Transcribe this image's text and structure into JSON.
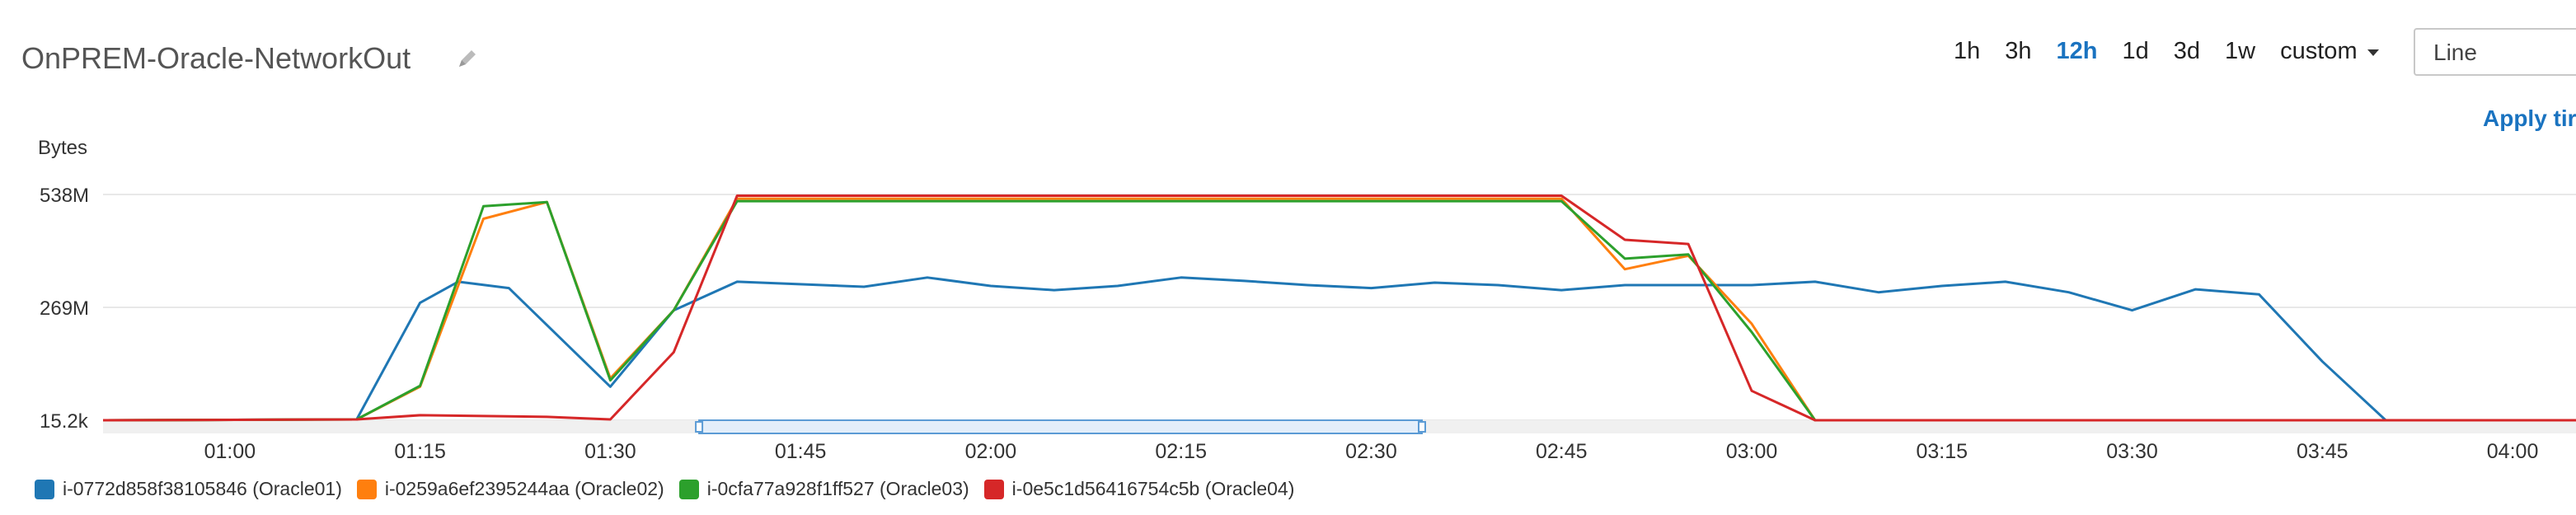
{
  "header": {
    "title": "OnPREM-Oracle-NetworkOut",
    "edit_icon": "pencil-icon"
  },
  "time_range": {
    "options": [
      "1h",
      "3h",
      "12h",
      "1d",
      "3d",
      "1w"
    ],
    "active": "12h",
    "custom_label": "custom"
  },
  "chart_type_select": {
    "value": "Line"
  },
  "apply_label": "Apply tir",
  "colors": {
    "series": [
      "#1f77b4",
      "#ff7f0e",
      "#2ca02c",
      "#d62728"
    ],
    "grid": "#e8e8e8",
    "navigator": "#5b9bd5"
  },
  "chart_data": {
    "type": "line",
    "ylabel": "Bytes",
    "y_ticks": [
      "15.2k",
      "269M",
      "538M"
    ],
    "ylim": [
      0,
      538
    ],
    "y_unit": "M",
    "x_ticks": [
      "01:00",
      "01:15",
      "01:30",
      "01:45",
      "02:00",
      "02:15",
      "02:30",
      "02:45",
      "03:00",
      "03:15",
      "03:30",
      "03:45",
      "04:00"
    ],
    "x_range": [
      "00:50",
      "04:05"
    ],
    "grid": true,
    "legend_position": "bottom-left",
    "series": [
      {
        "name": "i-0772d858f38105846 (Oracle01)",
        "points": [
          [
            "00:50",
            0
          ],
          [
            "01:00",
            1
          ],
          [
            "01:10",
            2
          ],
          [
            "01:15",
            280
          ],
          [
            "01:18",
            330
          ],
          [
            "01:22",
            315
          ],
          [
            "01:30",
            80
          ],
          [
            "01:35",
            262
          ],
          [
            "01:40",
            330
          ],
          [
            "01:50",
            318
          ],
          [
            "01:55",
            340
          ],
          [
            "02:00",
            320
          ],
          [
            "02:05",
            310
          ],
          [
            "02:10",
            320
          ],
          [
            "02:15",
            340
          ],
          [
            "02:20",
            332
          ],
          [
            "02:25",
            322
          ],
          [
            "02:30",
            315
          ],
          [
            "02:35",
            328
          ],
          [
            "02:40",
            322
          ],
          [
            "02:45",
            310
          ],
          [
            "02:50",
            322
          ],
          [
            "02:55",
            322
          ],
          [
            "03:00",
            322
          ],
          [
            "03:05",
            330
          ],
          [
            "03:10",
            305
          ],
          [
            "03:15",
            320
          ],
          [
            "03:20",
            330
          ],
          [
            "03:25",
            305
          ],
          [
            "03:30",
            262
          ],
          [
            "03:35",
            312
          ],
          [
            "03:40",
            300
          ],
          [
            "03:45",
            140
          ],
          [
            "03:50",
            0
          ],
          [
            "04:05",
            0
          ]
        ]
      },
      {
        "name": "i-0259a6ef2395244aa (Oracle02)",
        "points": [
          [
            "00:50",
            0
          ],
          [
            "01:10",
            2
          ],
          [
            "01:15",
            80
          ],
          [
            "01:20",
            480
          ],
          [
            "01:25",
            520
          ],
          [
            "01:30",
            100
          ],
          [
            "01:35",
            262
          ],
          [
            "01:40",
            528
          ],
          [
            "02:45",
            528
          ],
          [
            "02:50",
            360
          ],
          [
            "02:55",
            392
          ],
          [
            "03:00",
            230
          ],
          [
            "03:05",
            0
          ],
          [
            "04:05",
            0
          ]
        ]
      },
      {
        "name": "i-0cfa77a928f1ff527 (Oracle03)",
        "points": [
          [
            "00:50",
            0
          ],
          [
            "01:10",
            2
          ],
          [
            "01:15",
            82
          ],
          [
            "01:20",
            510
          ],
          [
            "01:25",
            520
          ],
          [
            "01:30",
            95
          ],
          [
            "01:35",
            262
          ],
          [
            "01:40",
            522
          ],
          [
            "02:45",
            522
          ],
          [
            "02:50",
            385
          ],
          [
            "02:55",
            395
          ],
          [
            "03:00",
            210
          ],
          [
            "03:05",
            0
          ],
          [
            "04:05",
            0
          ]
        ]
      },
      {
        "name": "i-0e5c1d56416754c5b (Oracle04)",
        "points": [
          [
            "00:50",
            0
          ],
          [
            "01:10",
            2
          ],
          [
            "01:15",
            12
          ],
          [
            "01:25",
            8
          ],
          [
            "01:30",
            2
          ],
          [
            "01:35",
            162
          ],
          [
            "01:40",
            535
          ],
          [
            "02:45",
            535
          ],
          [
            "02:50",
            430
          ],
          [
            "02:55",
            420
          ],
          [
            "03:00",
            70
          ],
          [
            "03:05",
            0
          ],
          [
            "04:05",
            0
          ]
        ]
      }
    ],
    "navigator_range": [
      "01:37",
      "02:34"
    ]
  }
}
